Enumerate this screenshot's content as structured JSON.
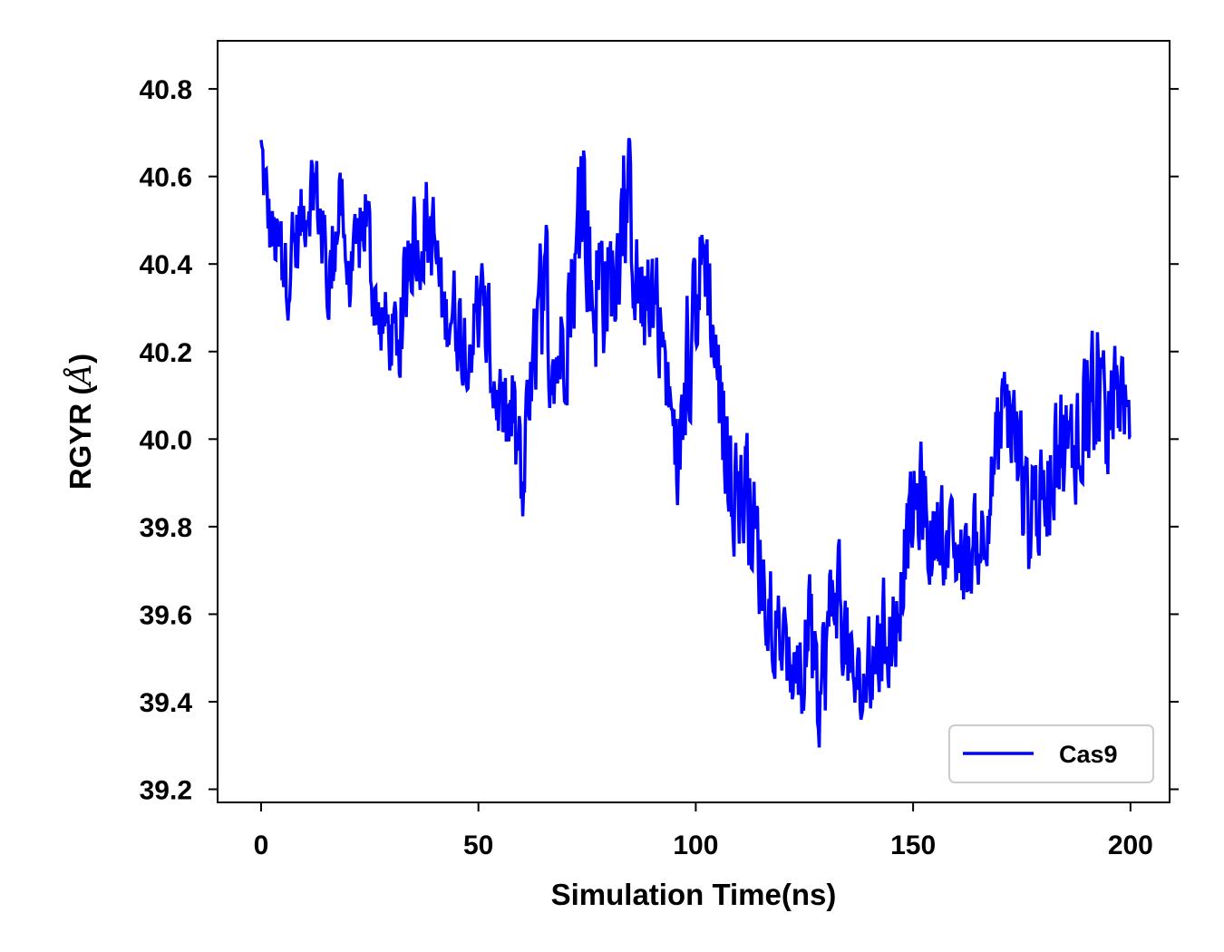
{
  "chart_data": {
    "type": "line",
    "title": "",
    "xlabel": "Simulation Time(ns)",
    "ylabel_prefix": "RGYR (",
    "ylabel_symbol": "Å",
    "ylabel_suffix": ")",
    "xlim": [
      -10,
      209
    ],
    "ylim": [
      39.17,
      40.91
    ],
    "xticks": [
      0,
      50,
      100,
      150,
      200
    ],
    "xtick_labels": [
      "0",
      "50",
      "100",
      "150",
      "200"
    ],
    "yticks": [
      39.2,
      39.4,
      39.6,
      39.8,
      40.0,
      40.2,
      40.4,
      40.6,
      40.8
    ],
    "ytick_labels": [
      "39.2",
      "39.4",
      "39.6",
      "39.8",
      "40.0",
      "40.2",
      "40.4",
      "40.6",
      "40.8"
    ],
    "grid": false,
    "legend_position": "lower-right",
    "series": [
      {
        "name": "Cas9",
        "color": "#0000ff",
        "x": [
          0,
          2,
          4,
          6,
          8,
          10,
          12,
          14,
          16,
          18,
          20,
          22,
          24,
          26,
          28,
          30,
          32,
          34,
          36,
          38,
          40,
          42,
          44,
          46,
          48,
          50,
          52,
          54,
          56,
          58,
          60,
          62,
          64,
          66,
          68,
          70,
          72,
          74,
          76,
          78,
          80,
          82,
          84,
          86,
          88,
          90,
          92,
          94,
          96,
          98,
          100,
          102,
          104,
          106,
          108,
          110,
          112,
          114,
          116,
          118,
          120,
          122,
          124,
          126,
          128,
          130,
          132,
          134,
          136,
          138,
          140,
          142,
          144,
          146,
          148,
          150,
          152,
          154,
          156,
          158,
          160,
          162,
          164,
          166,
          168,
          170,
          172,
          174,
          176,
          178,
          180,
          182,
          184,
          186,
          188,
          190,
          192,
          194,
          196,
          198,
          200
        ],
        "y_upper": [
          40.78,
          40.6,
          40.55,
          40.5,
          40.6,
          40.65,
          40.75,
          40.6,
          40.55,
          40.75,
          40.45,
          40.55,
          40.7,
          40.45,
          40.4,
          40.35,
          40.4,
          40.65,
          40.55,
          40.7,
          40.6,
          40.4,
          40.45,
          40.4,
          40.35,
          40.45,
          40.4,
          40.25,
          40.15,
          40.25,
          40.05,
          40.25,
          40.5,
          40.6,
          40.35,
          40.45,
          40.55,
          40.83,
          40.6,
          40.65,
          40.55,
          40.65,
          40.83,
          40.55,
          40.45,
          40.55,
          40.4,
          40.2,
          40.1,
          40.4,
          40.5,
          40.65,
          40.4,
          40.25,
          40.05,
          40.05,
          40.05,
          39.95,
          39.8,
          39.75,
          39.65,
          39.55,
          39.6,
          39.75,
          39.55,
          39.75,
          39.85,
          39.75,
          39.6,
          39.55,
          39.65,
          39.7,
          39.75,
          39.7,
          39.9,
          40.0,
          40.05,
          39.9,
          39.95,
          39.9,
          39.85,
          39.85,
          39.9,
          39.95,
          40.05,
          40.2,
          40.25,
          40.15,
          40.0,
          40.05,
          40.0,
          40.15,
          40.2,
          40.15,
          40.25,
          40.3,
          40.4,
          40.2,
          40.25,
          40.3,
          40.05
        ],
        "y_lower": [
          40.5,
          40.35,
          40.3,
          40.25,
          40.3,
          40.4,
          40.45,
          40.35,
          40.2,
          40.4,
          40.25,
          40.3,
          40.35,
          40.2,
          40.15,
          40.1,
          40.1,
          40.3,
          40.3,
          40.35,
          40.25,
          40.15,
          40.15,
          40.1,
          40.1,
          40.1,
          40.05,
          39.95,
          39.9,
          39.8,
          39.75,
          39.95,
          40.1,
          40.05,
          40.0,
          40.05,
          40.15,
          40.35,
          40.05,
          40.1,
          40.15,
          40.25,
          40.35,
          40.2,
          40.1,
          40.15,
          40.1,
          39.95,
          39.8,
          39.95,
          40.1,
          40.25,
          40.05,
          39.85,
          39.7,
          39.7,
          39.65,
          39.55,
          39.5,
          39.45,
          39.4,
          39.35,
          39.3,
          39.4,
          39.25,
          39.3,
          39.5,
          39.4,
          39.3,
          39.3,
          39.3,
          39.35,
          39.4,
          39.4,
          39.6,
          39.65,
          39.7,
          39.6,
          39.65,
          39.6,
          39.6,
          39.55,
          39.6,
          39.65,
          39.75,
          39.85,
          39.9,
          39.8,
          39.6,
          39.65,
          39.7,
          39.75,
          39.8,
          39.75,
          39.85,
          39.85,
          39.9,
          39.85,
          39.9,
          39.95,
          39.95
        ]
      }
    ]
  }
}
